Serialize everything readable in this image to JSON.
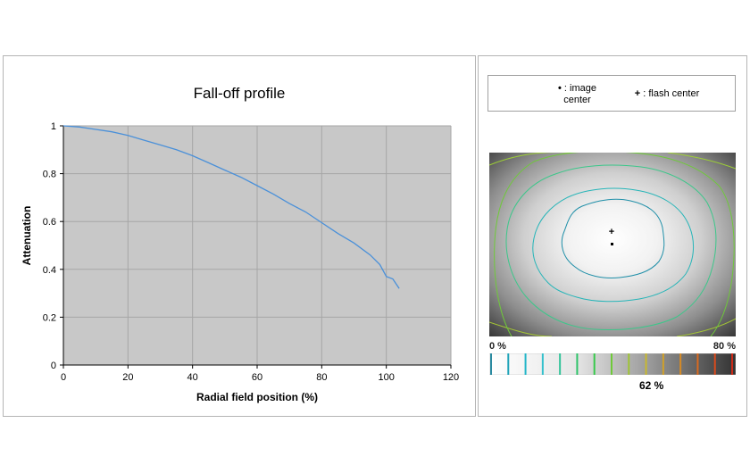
{
  "chart_data": {
    "type": "line",
    "title": "Fall-off profile",
    "xlabel": "Radial field position (%)",
    "ylabel": "Attenuation",
    "xlim": [
      0,
      120
    ],
    "ylim": [
      0,
      1
    ],
    "xticks": [
      "0",
      "20",
      "40",
      "60",
      "80",
      "100",
      "120"
    ],
    "yticks": [
      "0",
      "0.2",
      "0.4",
      "0.6",
      "0.8",
      "1"
    ],
    "grid": true,
    "line_color": "#4a90d9",
    "plot_background": "#c8c8c8",
    "series": [
      {
        "x": [
          0,
          5,
          10,
          15,
          20,
          25,
          30,
          35,
          40,
          45,
          50,
          55,
          60,
          65,
          70,
          75,
          80,
          85,
          90,
          95,
          98,
          100,
          102,
          104
        ],
        "values": [
          1.0,
          0.995,
          0.985,
          0.975,
          0.96,
          0.94,
          0.92,
          0.9,
          0.875,
          0.845,
          0.815,
          0.785,
          0.75,
          0.715,
          0.675,
          0.64,
          0.595,
          0.55,
          0.51,
          0.46,
          0.42,
          0.37,
          0.36,
          0.32
        ]
      }
    ]
  },
  "legend": {
    "image_center_symbol": "•",
    "image_center_label": ": image center",
    "flash_center_symbol": "+",
    "flash_center_label": ": flash center"
  },
  "scale": {
    "min_label": "0 %",
    "max_label": "80 %",
    "current_value": "62 %",
    "colors": [
      "#2a8aa0",
      "#1fa3b8",
      "#22b5c8",
      "#33c0cc",
      "#34c49a",
      "#2fc46a",
      "#38c94c",
      "#6fc93a",
      "#a0c436",
      "#c7b830",
      "#d0a028",
      "#d68a24",
      "#d86a20",
      "#d84a1c",
      "#cc2a18"
    ]
  }
}
